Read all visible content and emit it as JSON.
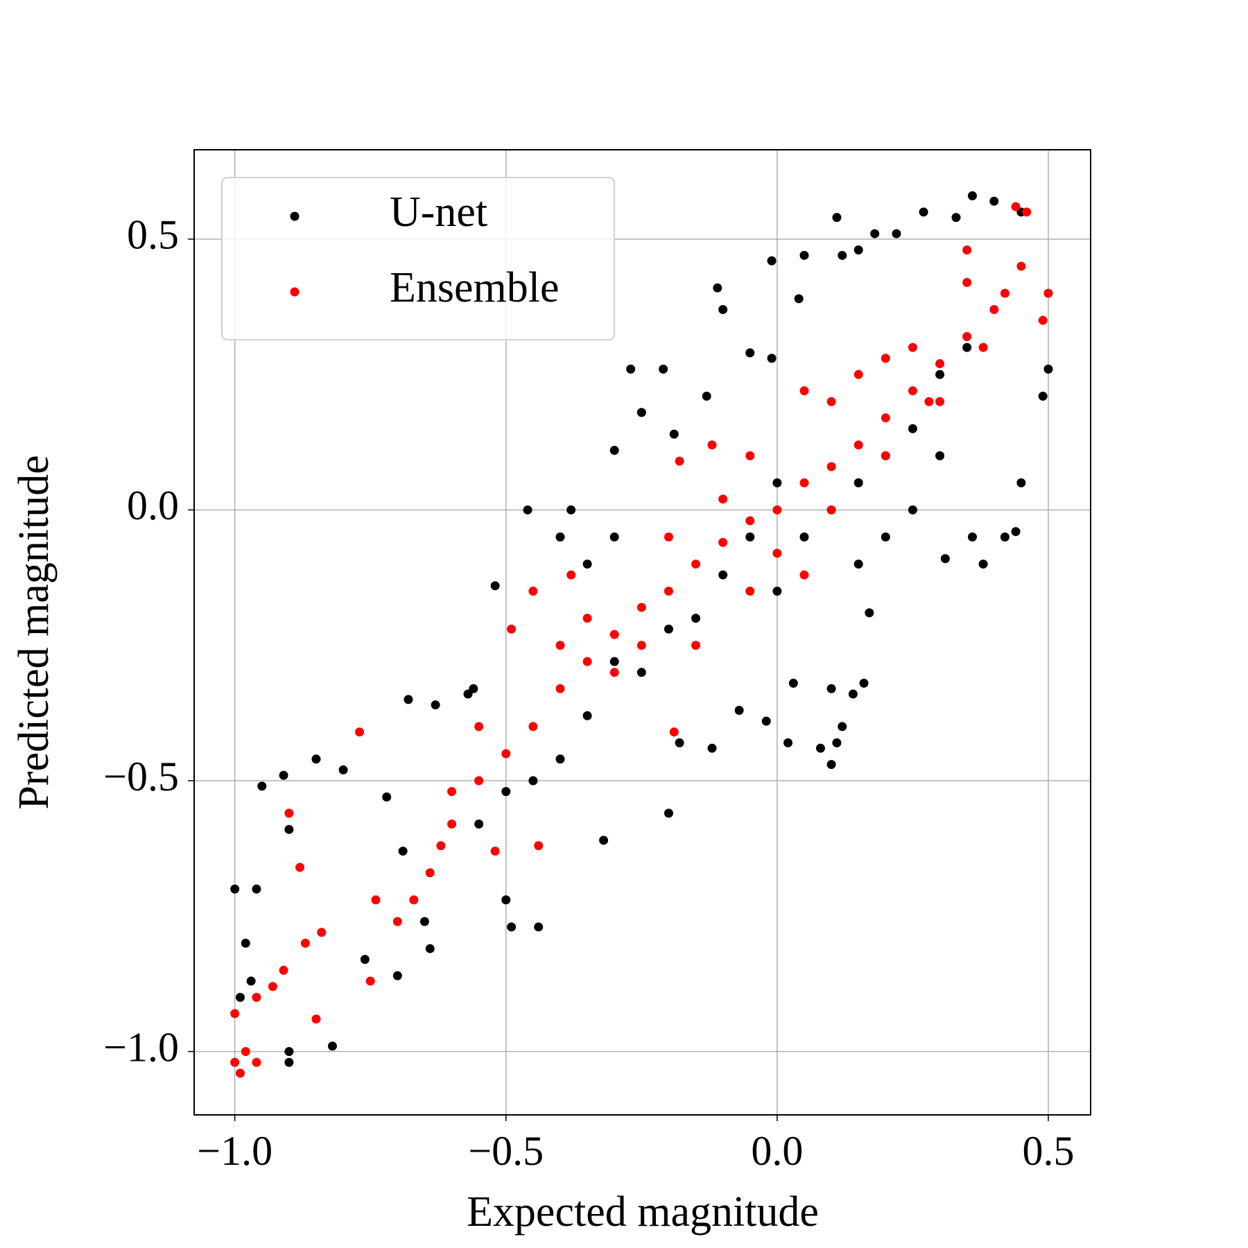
{
  "chart_data": {
    "type": "scatter",
    "xlabel": "Expected magnitude",
    "ylabel": "Predicted magnitude",
    "xlim": [
      -1.075,
      0.578
    ],
    "ylim": [
      -1.117,
      0.665
    ],
    "xticks": [
      {
        "value": -1.0,
        "label": "−1.0"
      },
      {
        "value": -0.5,
        "label": "−0.5"
      },
      {
        "value": 0.0,
        "label": "0.0"
      },
      0.5
    ],
    "yticks": [
      {
        "value": -1.0,
        "label": "−1.0"
      },
      {
        "value": -0.5,
        "label": "−0.5"
      },
      {
        "value": 0.0,
        "label": "0.0"
      },
      0.5
    ],
    "grid": true,
    "legend": "upper left",
    "series": [
      {
        "name": "U-net",
        "color": "#000000",
        "x": [
          -1.0,
          -0.99,
          -0.98,
          -0.97,
          -0.96,
          -0.95,
          -0.91,
          -0.9,
          -0.9,
          -0.9,
          -0.85,
          -0.82,
          -0.8,
          -0.76,
          -0.72,
          -0.7,
          -0.69,
          -0.64,
          -0.65,
          -0.68,
          -0.63,
          -0.57,
          -0.56,
          -0.5,
          -0.49,
          -0.44,
          -0.32,
          -0.2,
          -0.52,
          -0.46,
          -0.4,
          -0.38,
          -0.3,
          -0.27,
          -0.25,
          -0.21,
          -0.19,
          -0.13,
          -0.11,
          -0.1,
          -0.05,
          -0.01,
          -0.01,
          0.04,
          0.05,
          0.11,
          0.12,
          0.15,
          0.18,
          0.22,
          0.27,
          0.33,
          0.36,
          0.4,
          0.45,
          0.5,
          0.49,
          0.45,
          0.44,
          0.42,
          0.38,
          0.36,
          0.31,
          0.2,
          0.17,
          0.16,
          0.14,
          0.12,
          0.1,
          0.11,
          0.08,
          0.1,
          0.03,
          -0.02,
          0.02,
          -0.07,
          -0.12,
          -0.18,
          0.0,
          0.05,
          0.1,
          0.15,
          0.2,
          0.25,
          0.3,
          0.35,
          -0.1,
          -0.15,
          -0.2,
          -0.25,
          -0.3,
          -0.35,
          -0.4,
          -0.45,
          -0.5,
          -0.55,
          0.0,
          -0.05,
          -0.3,
          -0.35,
          0.15,
          0.25,
          0.3
        ],
        "values": [
          -0.7,
          -0.9,
          -0.8,
          -0.87,
          -0.7,
          -0.51,
          -0.49,
          -0.59,
          -1.0,
          -1.02,
          -0.46,
          -0.99,
          -0.48,
          -0.83,
          -0.53,
          -0.86,
          -0.63,
          -0.81,
          -0.76,
          -0.35,
          -0.36,
          -0.34,
          -0.33,
          -0.72,
          -0.77,
          -0.77,
          -0.61,
          -0.56,
          -0.14,
          0.0,
          -0.05,
          0.0,
          0.11,
          0.26,
          0.18,
          0.26,
          0.14,
          0.21,
          0.41,
          0.37,
          0.29,
          0.46,
          0.28,
          0.39,
          0.47,
          0.54,
          0.47,
          0.48,
          0.51,
          0.51,
          0.55,
          0.54,
          0.58,
          0.57,
          0.55,
          0.26,
          0.21,
          0.05,
          -0.04,
          -0.05,
          -0.1,
          -0.05,
          -0.09,
          -0.05,
          -0.19,
          -0.32,
          -0.34,
          -0.4,
          -0.47,
          -0.43,
          -0.44,
          -0.33,
          -0.32,
          -0.39,
          -0.43,
          -0.37,
          -0.44,
          -0.43,
          -0.15,
          -0.05,
          0.0,
          0.05,
          0.1,
          0.15,
          0.25,
          0.3,
          -0.12,
          -0.2,
          -0.22,
          -0.3,
          -0.28,
          -0.38,
          -0.46,
          -0.5,
          -0.52,
          -0.58,
          0.05,
          -0.05,
          -0.05,
          -0.1,
          -0.1,
          0.0,
          0.1
        ]
      },
      {
        "name": "Ensemble",
        "color": "#ff0000",
        "x": [
          -1.0,
          -0.99,
          -0.98,
          -0.96,
          -1.0,
          -0.96,
          -0.93,
          -0.91,
          -0.85,
          -0.87,
          -0.84,
          -0.9,
          -0.88,
          -0.77,
          -0.75,
          -0.74,
          -0.7,
          -0.67,
          -0.64,
          -0.62,
          -0.6,
          -0.55,
          -0.5,
          -0.45,
          -0.4,
          -0.35,
          -0.3,
          -0.25,
          -0.2,
          -0.15,
          -0.1,
          -0.05,
          0.0,
          0.05,
          0.1,
          0.15,
          0.2,
          0.25,
          0.3,
          0.35,
          0.4,
          0.45,
          0.44,
          0.46,
          0.5,
          0.49,
          -0.44,
          -0.52,
          -0.19,
          -0.49,
          -0.18,
          -0.12,
          -0.45,
          -0.38,
          0.05,
          0.15,
          0.35,
          -0.3,
          -0.25,
          -0.35,
          0.1,
          0.2,
          0.3,
          -0.2,
          -0.1,
          0.0,
          0.05,
          -0.05,
          0.35,
          0.25,
          -0.6,
          -0.55,
          -0.4,
          -0.15,
          -0.05,
          0.1,
          0.2,
          0.28,
          0.38,
          0.42
        ],
        "values": [
          -1.02,
          -1.04,
          -1.0,
          -1.02,
          -0.93,
          -0.9,
          -0.88,
          -0.85,
          -0.94,
          -0.8,
          -0.78,
          -0.56,
          -0.66,
          -0.41,
          -0.87,
          -0.72,
          -0.76,
          -0.72,
          -0.67,
          -0.62,
          -0.58,
          -0.5,
          -0.45,
          -0.4,
          -0.33,
          -0.28,
          -0.23,
          -0.18,
          -0.15,
          -0.1,
          -0.06,
          -0.02,
          0.0,
          0.05,
          0.08,
          0.12,
          0.17,
          0.22,
          0.27,
          0.32,
          0.37,
          0.45,
          0.56,
          0.55,
          0.4,
          0.35,
          -0.62,
          -0.63,
          -0.41,
          -0.22,
          0.09,
          0.12,
          -0.15,
          -0.12,
          0.22,
          0.25,
          0.48,
          -0.3,
          -0.25,
          -0.2,
          0.0,
          0.1,
          0.2,
          -0.05,
          0.02,
          -0.08,
          -0.12,
          0.1,
          0.42,
          0.3,
          -0.52,
          -0.4,
          -0.25,
          -0.25,
          -0.15,
          0.2,
          0.28,
          0.2,
          0.3,
          0.4
        ]
      }
    ]
  }
}
